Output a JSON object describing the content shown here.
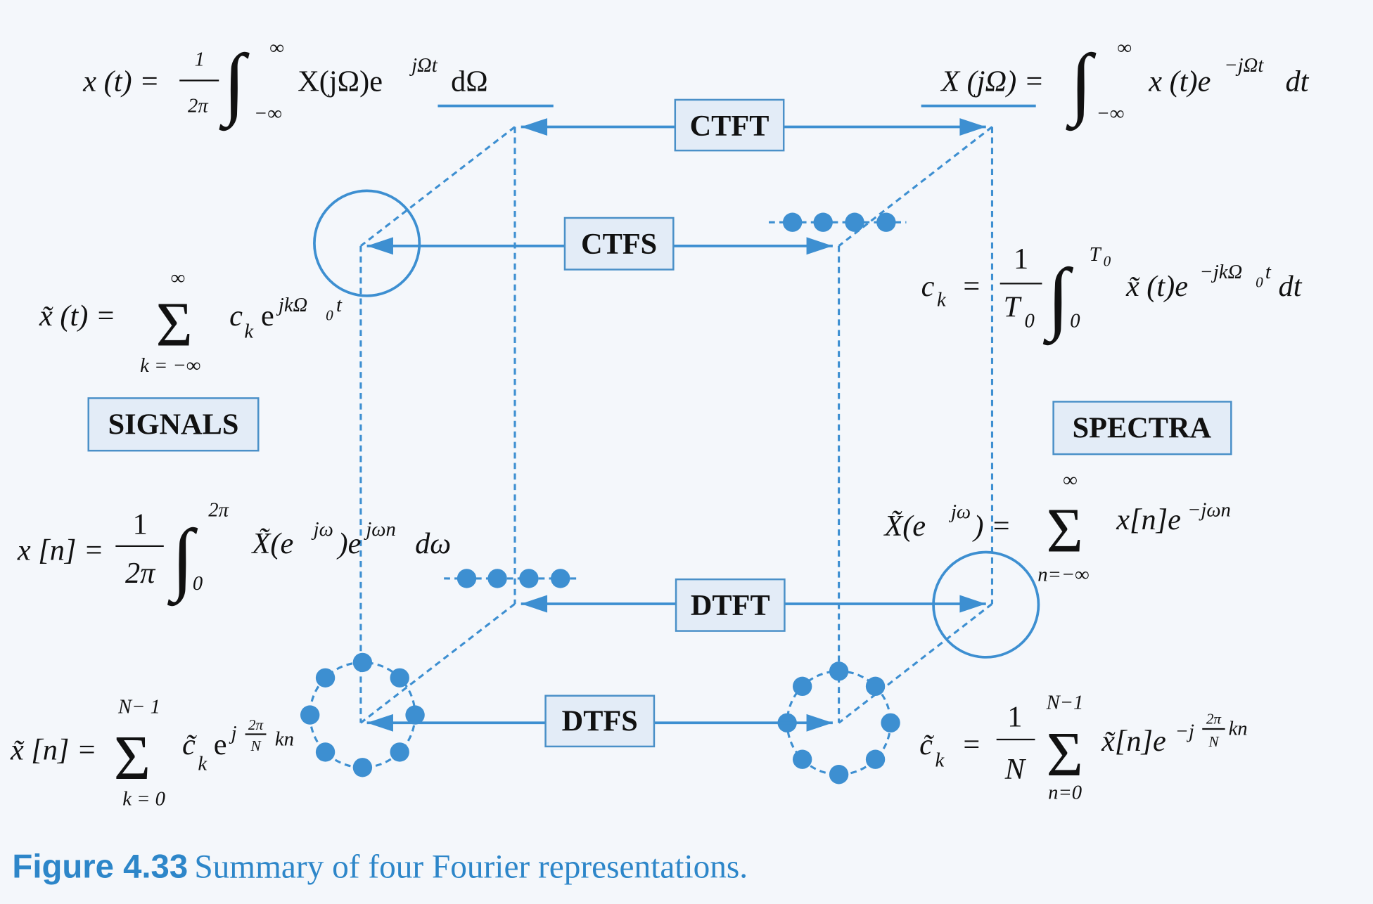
{
  "boxes": {
    "ctft": "CTFT",
    "ctfs": "CTFS",
    "dtft": "DTFT",
    "dtfs": "DTFS",
    "signals": "SIGNALS",
    "spectra": "SPECTRA"
  },
  "equations": [
    [
      "x (t) =",
      "1",
      "2π",
      "∫",
      "∞",
      "−∞",
      "X(jΩ)e",
      "jΩt",
      "dΩ"
    ],
    [
      "X (jΩ) =",
      "∫",
      "∞",
      "−∞",
      "x (t)e",
      "−jΩt",
      "dt"
    ],
    [
      "x̃ (t) =",
      "Σ",
      "∞",
      "k = −∞",
      "c",
      "k",
      "e",
      "jkΩ",
      "0",
      "t"
    ],
    [
      "c",
      "k",
      "=",
      "1",
      "T",
      "0",
      "∫",
      "T",
      "0",
      "0",
      "x̃ (t)e",
      "−jkΩ",
      "0",
      "t",
      "dt"
    ],
    [
      "x [n] =",
      "1",
      "2π",
      "∫",
      "2π",
      "0",
      "X̃(e",
      "jω",
      ")e",
      "jωn",
      "dω"
    ],
    [
      "X̃(e",
      "jω",
      ") =",
      "Σ",
      "∞",
      "n=−∞",
      "x[n]e",
      "−jωn"
    ],
    [
      "x̃ [n] =",
      "Σ",
      "N− 1",
      "k = 0",
      "c̃",
      "k",
      "e",
      "j",
      "2π",
      "N",
      "kn"
    ],
    [
      "c̃",
      "k",
      "=",
      "1",
      "N",
      "Σ",
      "N−1",
      "n=0",
      "x̃[n]e",
      "−j",
      "2π",
      "N",
      "kn"
    ]
  ],
  "caption": {
    "label": "Figure 4.33",
    "text": "Summary of four Fourier representations."
  }
}
